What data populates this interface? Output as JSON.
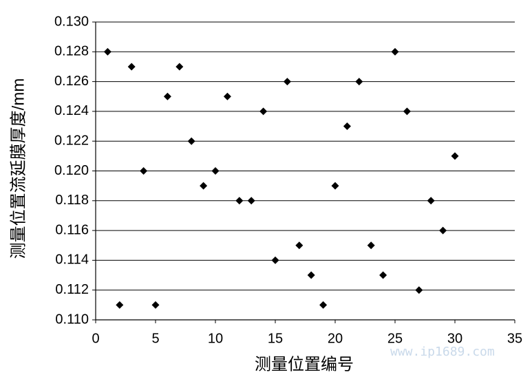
{
  "chart_data": {
    "type": "scatter",
    "xlabel": "测量位置编号",
    "ylabel": "测量位置流延膜厚度/mm",
    "watermark": "www.ip1689.com",
    "color": "#000000",
    "grid": true,
    "x": [
      1,
      2,
      3,
      4,
      5,
      6,
      7,
      8,
      9,
      10,
      11,
      12,
      13,
      14,
      15,
      16,
      17,
      18,
      19,
      20,
      21,
      22,
      23,
      24,
      25,
      26,
      27,
      28,
      29,
      30
    ],
    "values": [
      0.128,
      0.111,
      0.127,
      0.12,
      0.111,
      0.125,
      0.127,
      0.122,
      0.119,
      0.12,
      0.125,
      0.118,
      0.118,
      0.124,
      0.114,
      0.126,
      0.115,
      0.113,
      0.111,
      0.119,
      0.123,
      0.126,
      0.115,
      0.113,
      0.128,
      0.124,
      0.112,
      0.118,
      0.116,
      0.121
    ],
    "xlim": [
      0,
      35
    ],
    "xticks": [
      0,
      5,
      10,
      15,
      20,
      25,
      30,
      35
    ],
    "ylim": [
      0.11,
      0.13
    ],
    "yticks": [
      {
        "value": 0.11,
        "label": "0.110"
      },
      0.112,
      0.114,
      0.116,
      0.118,
      {
        "value": 0.12,
        "label": "0.120"
      },
      0.122,
      0.124,
      0.126,
      0.128,
      {
        "value": 0.13,
        "label": "0.130"
      }
    ]
  }
}
